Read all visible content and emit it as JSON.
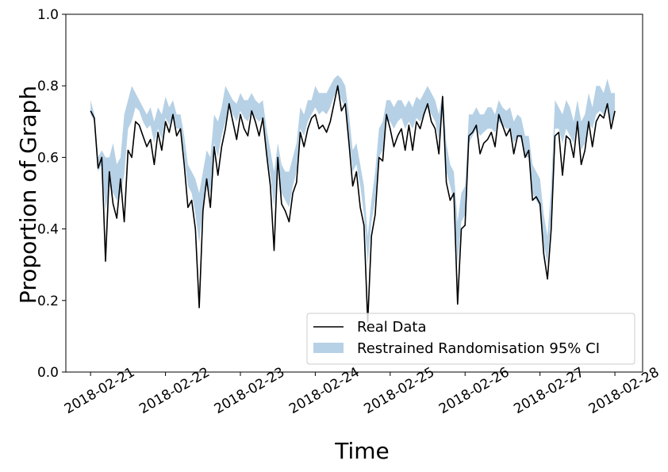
{
  "chart_data": {
    "type": "line",
    "title": "",
    "xlabel": "Time",
    "ylabel": "Proportion of Graph",
    "ylim": [
      0.0,
      1.0
    ],
    "yticks": [
      0.0,
      0.2,
      0.4,
      0.6,
      0.8,
      1.0
    ],
    "ytick_labels": [
      "0.0",
      "0.2",
      "0.4",
      "0.6",
      "0.8",
      "1.0"
    ],
    "xlim": [
      -0.33,
      7.37
    ],
    "xtick_labels": [
      "2018-02-21",
      "2018-02-22",
      "2018-02-23",
      "2018-02-24",
      "2018-02-25",
      "2018-02-26",
      "2018-02-27",
      "2018-02-28"
    ],
    "grid": false,
    "legend": {
      "placement": "lower-right",
      "entries": [
        "Real Data",
        "Restrained Randomisation 95% CI"
      ]
    },
    "colors": {
      "line": "#000000",
      "band": "#b6d1e6"
    },
    "series": [
      {
        "name": "Real Data",
        "kind": "line",
        "x": [
          0.0,
          0.05,
          0.1,
          0.15,
          0.2,
          0.25,
          0.3,
          0.35,
          0.4,
          0.45,
          0.5,
          0.55,
          0.6,
          0.65,
          0.7,
          0.75,
          0.8,
          0.85,
          0.9,
          0.95,
          1.0,
          1.05,
          1.1,
          1.15,
          1.2,
          1.25,
          1.3,
          1.35,
          1.4,
          1.45,
          1.5,
          1.55,
          1.6,
          1.65,
          1.7,
          1.75,
          1.8,
          1.85,
          1.9,
          1.95,
          2.0,
          2.05,
          2.1,
          2.15,
          2.2,
          2.25,
          2.3,
          2.35,
          2.4,
          2.45,
          2.5,
          2.55,
          2.6,
          2.65,
          2.7,
          2.75,
          2.8,
          2.85,
          2.9,
          2.95,
          3.0,
          3.05,
          3.1,
          3.15,
          3.2,
          3.25,
          3.3,
          3.35,
          3.4,
          3.45,
          3.5,
          3.55,
          3.6,
          3.65,
          3.7,
          3.75,
          3.8,
          3.85,
          3.9,
          3.95,
          4.0,
          4.05,
          4.1,
          4.15,
          4.2,
          4.25,
          4.3,
          4.35,
          4.4,
          4.45,
          4.5,
          4.55,
          4.6,
          4.65,
          4.7,
          4.75,
          4.8,
          4.85,
          4.9,
          4.95,
          5.0,
          5.05,
          5.1,
          5.15,
          5.2,
          5.25,
          5.3,
          5.35,
          5.4,
          5.45,
          5.5,
          5.55,
          5.6,
          5.65,
          5.7,
          5.75,
          5.8,
          5.85,
          5.9,
          5.95,
          6.0,
          6.05,
          6.1,
          6.15,
          6.2,
          6.25,
          6.3,
          6.35,
          6.4,
          6.45,
          6.5,
          6.55,
          6.6,
          6.65,
          6.7,
          6.75,
          6.8,
          6.85,
          6.9,
          6.95,
          7.0
        ],
        "y": [
          0.73,
          0.71,
          0.57,
          0.6,
          0.31,
          0.56,
          0.47,
          0.43,
          0.54,
          0.42,
          0.62,
          0.6,
          0.7,
          0.69,
          0.66,
          0.63,
          0.65,
          0.58,
          0.67,
          0.62,
          0.7,
          0.67,
          0.72,
          0.66,
          0.68,
          0.58,
          0.46,
          0.48,
          0.4,
          0.18,
          0.45,
          0.54,
          0.46,
          0.63,
          0.55,
          0.63,
          0.68,
          0.75,
          0.7,
          0.65,
          0.72,
          0.68,
          0.66,
          0.73,
          0.7,
          0.66,
          0.71,
          0.61,
          0.52,
          0.34,
          0.6,
          0.47,
          0.45,
          0.42,
          0.5,
          0.53,
          0.67,
          0.63,
          0.68,
          0.71,
          0.72,
          0.68,
          0.69,
          0.67,
          0.7,
          0.75,
          0.8,
          0.73,
          0.75,
          0.64,
          0.52,
          0.56,
          0.46,
          0.41,
          0.14,
          0.38,
          0.44,
          0.6,
          0.59,
          0.72,
          0.68,
          0.63,
          0.66,
          0.68,
          0.62,
          0.69,
          0.62,
          0.7,
          0.68,
          0.72,
          0.75,
          0.7,
          0.68,
          0.61,
          0.77,
          0.53,
          0.48,
          0.5,
          0.19,
          0.4,
          0.41,
          0.66,
          0.67,
          0.69,
          0.61,
          0.64,
          0.65,
          0.67,
          0.63,
          0.72,
          0.69,
          0.66,
          0.68,
          0.61,
          0.66,
          0.66,
          0.6,
          0.62,
          0.48,
          0.49,
          0.47,
          0.33,
          0.26,
          0.4,
          0.66,
          0.67,
          0.55,
          0.66,
          0.65,
          0.6,
          0.7,
          0.58,
          0.62,
          0.7,
          0.63,
          0.7,
          0.72,
          0.71,
          0.75,
          0.68,
          0.73
        ]
      },
      {
        "name": "Restrained Randomisation 95% CI",
        "kind": "band",
        "x": [
          0.0,
          0.05,
          0.1,
          0.15,
          0.2,
          0.25,
          0.3,
          0.35,
          0.4,
          0.45,
          0.5,
          0.55,
          0.6,
          0.65,
          0.7,
          0.75,
          0.8,
          0.85,
          0.9,
          0.95,
          1.0,
          1.05,
          1.1,
          1.15,
          1.2,
          1.25,
          1.3,
          1.35,
          1.4,
          1.45,
          1.5,
          1.55,
          1.6,
          1.65,
          1.7,
          1.75,
          1.8,
          1.85,
          1.9,
          1.95,
          2.0,
          2.05,
          2.1,
          2.15,
          2.2,
          2.25,
          2.3,
          2.35,
          2.4,
          2.45,
          2.5,
          2.55,
          2.6,
          2.65,
          2.7,
          2.75,
          2.8,
          2.85,
          2.9,
          2.95,
          3.0,
          3.05,
          3.1,
          3.15,
          3.2,
          3.25,
          3.3,
          3.35,
          3.4,
          3.45,
          3.5,
          3.55,
          3.6,
          3.65,
          3.7,
          3.75,
          3.8,
          3.85,
          3.9,
          3.95,
          4.0,
          4.05,
          4.1,
          4.15,
          4.2,
          4.25,
          4.3,
          4.35,
          4.4,
          4.45,
          4.5,
          4.55,
          4.6,
          4.65,
          4.7,
          4.75,
          4.8,
          4.85,
          4.9,
          4.95,
          5.0,
          5.05,
          5.1,
          5.15,
          5.2,
          5.25,
          5.3,
          5.35,
          5.4,
          5.45,
          5.5,
          5.55,
          5.6,
          5.65,
          5.7,
          5.75,
          5.8,
          5.85,
          5.9,
          5.95,
          6.0,
          6.05,
          6.1,
          6.15,
          6.2,
          6.25,
          6.3,
          6.35,
          6.4,
          6.45,
          6.5,
          6.55,
          6.6,
          6.65,
          6.7,
          6.75,
          6.8,
          6.85,
          6.9,
          6.95,
          7.0
        ],
        "lower": [
          0.72,
          0.7,
          0.56,
          0.58,
          0.45,
          0.52,
          0.5,
          0.48,
          0.5,
          0.55,
          0.68,
          0.7,
          0.74,
          0.73,
          0.7,
          0.68,
          0.69,
          0.64,
          0.68,
          0.65,
          0.71,
          0.69,
          0.72,
          0.68,
          0.68,
          0.6,
          0.52,
          0.5,
          0.44,
          0.36,
          0.46,
          0.52,
          0.5,
          0.64,
          0.6,
          0.66,
          0.7,
          0.74,
          0.72,
          0.7,
          0.73,
          0.71,
          0.7,
          0.73,
          0.71,
          0.7,
          0.71,
          0.62,
          0.55,
          0.46,
          0.58,
          0.5,
          0.48,
          0.46,
          0.52,
          0.56,
          0.68,
          0.66,
          0.7,
          0.72,
          0.74,
          0.72,
          0.73,
          0.72,
          0.74,
          0.77,
          0.79,
          0.76,
          0.74,
          0.66,
          0.56,
          0.58,
          0.52,
          0.44,
          0.3,
          0.42,
          0.48,
          0.6,
          0.62,
          0.7,
          0.7,
          0.68,
          0.7,
          0.71,
          0.68,
          0.7,
          0.68,
          0.71,
          0.7,
          0.72,
          0.74,
          0.72,
          0.7,
          0.65,
          0.72,
          0.56,
          0.52,
          0.48,
          0.3,
          0.42,
          0.44,
          0.64,
          0.66,
          0.68,
          0.66,
          0.67,
          0.68,
          0.68,
          0.67,
          0.7,
          0.69,
          0.68,
          0.68,
          0.64,
          0.66,
          0.65,
          0.6,
          0.6,
          0.5,
          0.48,
          0.46,
          0.36,
          0.3,
          0.44,
          0.68,
          0.68,
          0.64,
          0.68,
          0.66,
          0.64,
          0.7,
          0.62,
          0.64,
          0.7,
          0.68,
          0.72,
          0.73,
          0.72,
          0.74,
          0.7,
          0.72
        ],
        "upper": [
          0.76,
          0.72,
          0.6,
          0.62,
          0.6,
          0.6,
          0.64,
          0.58,
          0.6,
          0.72,
          0.76,
          0.8,
          0.78,
          0.76,
          0.74,
          0.72,
          0.74,
          0.7,
          0.74,
          0.72,
          0.77,
          0.74,
          0.76,
          0.72,
          0.72,
          0.66,
          0.58,
          0.56,
          0.54,
          0.5,
          0.56,
          0.62,
          0.6,
          0.72,
          0.7,
          0.74,
          0.8,
          0.78,
          0.76,
          0.75,
          0.78,
          0.76,
          0.76,
          0.78,
          0.76,
          0.75,
          0.76,
          0.68,
          0.62,
          0.56,
          0.64,
          0.58,
          0.56,
          0.56,
          0.6,
          0.64,
          0.74,
          0.72,
          0.76,
          0.76,
          0.8,
          0.78,
          0.78,
          0.78,
          0.8,
          0.82,
          0.83,
          0.82,
          0.8,
          0.72,
          0.62,
          0.64,
          0.58,
          0.52,
          0.38,
          0.48,
          0.56,
          0.68,
          0.7,
          0.76,
          0.76,
          0.74,
          0.76,
          0.76,
          0.74,
          0.76,
          0.74,
          0.77,
          0.76,
          0.78,
          0.8,
          0.78,
          0.76,
          0.72,
          0.78,
          0.64,
          0.58,
          0.56,
          0.42,
          0.5,
          0.52,
          0.72,
          0.72,
          0.74,
          0.72,
          0.72,
          0.74,
          0.74,
          0.72,
          0.76,
          0.74,
          0.73,
          0.74,
          0.7,
          0.72,
          0.71,
          0.66,
          0.66,
          0.58,
          0.56,
          0.54,
          0.44,
          0.38,
          0.52,
          0.76,
          0.74,
          0.72,
          0.76,
          0.74,
          0.7,
          0.76,
          0.7,
          0.72,
          0.78,
          0.74,
          0.8,
          0.8,
          0.78,
          0.82,
          0.78,
          0.78
        ]
      }
    ]
  }
}
